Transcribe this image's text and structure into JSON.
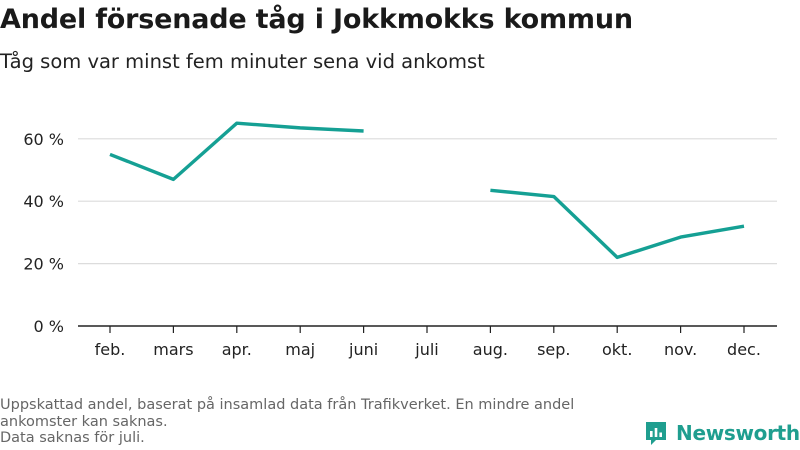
{
  "header": {
    "title": "Andel försenade tåg i Jokkmokks kommun",
    "subtitle": "Tåg som var minst fem minuter sena vid ankomst"
  },
  "footer": {
    "note_line1": "Uppskattad andel, baserat på insamlad data från Trafikverket. En mindre andel ankomster kan saknas.",
    "note_line2": "Data saknas för juli."
  },
  "brand": {
    "name": "Newsworthy",
    "icon": "newsworthy-logo-icon",
    "color": "#1f9e8f"
  },
  "chart_data": {
    "type": "line",
    "title": "Andel försenade tåg i Jokkmokks kommun",
    "subtitle": "Tåg som var minst fem minuter sena vid ankomst",
    "categories": [
      "feb.",
      "mars",
      "apr.",
      "maj",
      "juni",
      "juli",
      "aug.",
      "sep.",
      "okt.",
      "nov.",
      "dec."
    ],
    "series": [
      {
        "values": [
          55,
          47,
          65,
          63.5,
          62.5,
          null,
          43.5,
          41.5,
          22,
          28.5,
          32
        ],
        "color": "#15a094"
      }
    ],
    "ylim": [
      0,
      70
    ],
    "yticks": [
      0,
      20,
      40,
      60
    ],
    "ytick_labels": [
      "0 %",
      "20 %",
      "40 %",
      "60 %"
    ],
    "xlabel": "",
    "ylabel": "",
    "grid": "horizontal"
  }
}
